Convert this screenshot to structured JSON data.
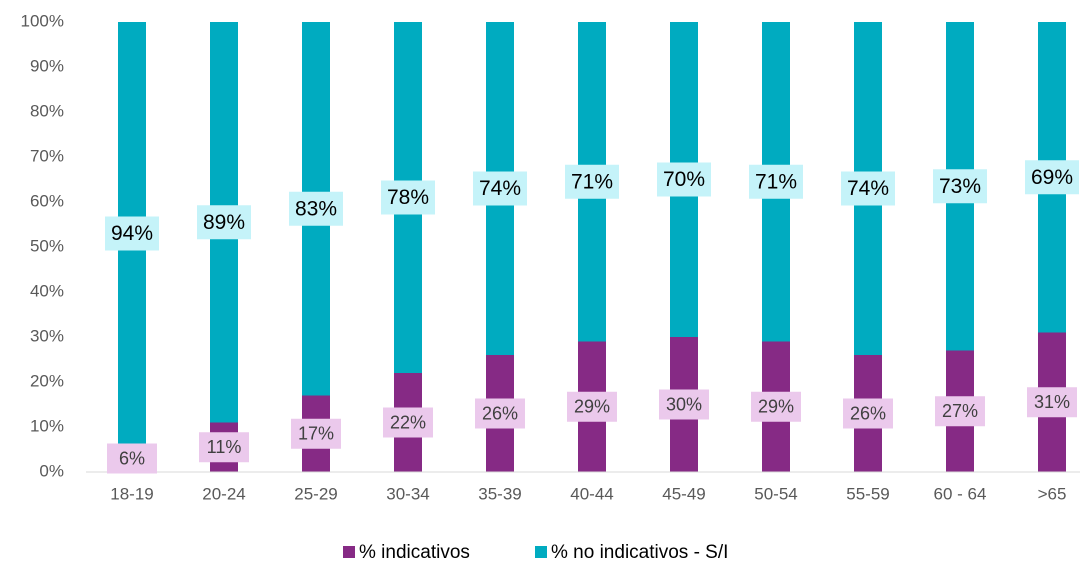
{
  "chart_data": {
    "type": "stacked_bar",
    "categories": [
      "18-19",
      "20-24",
      "25-29",
      "30-34",
      "35-39",
      "40-44",
      "45-49",
      "50-54",
      "55-59",
      "60 - 64",
      ">65"
    ],
    "series": [
      {
        "name": "% indicativos",
        "color": "#862a85",
        "label_color": "#ebc9ec",
        "values": [
          6,
          11,
          17,
          22,
          26,
          29,
          30,
          29,
          26,
          27,
          31
        ],
        "value_labels": [
          "6%",
          "11%",
          "17%",
          "22%",
          "26%",
          "29%",
          "30%",
          "29%",
          "26%",
          "27%",
          "31%"
        ]
      },
      {
        "name": "% no indicativos - S/I",
        "color": "#00abc0",
        "label_color": "#c5f3f9",
        "values": [
          94,
          89,
          83,
          78,
          74,
          71,
          70,
          71,
          74,
          73,
          69
        ],
        "value_labels": [
          "94%",
          "89%",
          "83%",
          "78%",
          "74%",
          "71%",
          "70%",
          "71%",
          "74%",
          "73%",
          "69%"
        ]
      }
    ],
    "ylim": [
      0,
      100
    ],
    "yticks": [
      {
        "value": 0,
        "label": "0%"
      },
      {
        "value": 10,
        "label": "10%"
      },
      {
        "value": 20,
        "label": "20%"
      },
      {
        "value": 30,
        "label": "30%"
      },
      {
        "value": 40,
        "label": "40%"
      },
      {
        "value": 50,
        "label": "50%"
      },
      {
        "value": 60,
        "label": "60%"
      },
      {
        "value": 70,
        "label": "70%"
      },
      {
        "value": 80,
        "label": "80%"
      },
      {
        "value": 90,
        "label": "90%"
      },
      {
        "value": 100,
        "label": "100%"
      }
    ],
    "grid": false,
    "legend": "bottom"
  }
}
